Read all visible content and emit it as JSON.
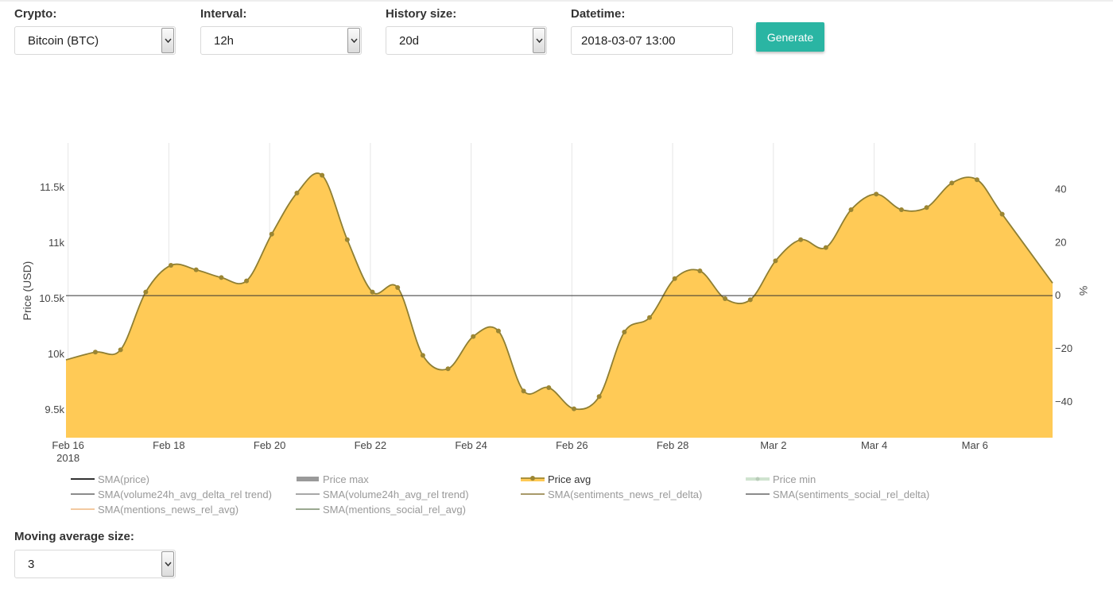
{
  "controls": {
    "crypto": {
      "label": "Crypto:",
      "value": "Bitcoin (BTC)"
    },
    "interval": {
      "label": "Interval:",
      "value": "12h"
    },
    "history": {
      "label": "History size:",
      "value": "20d"
    },
    "datetime": {
      "label": "Datetime:",
      "value": "2018-03-07 13:00"
    },
    "generate_label": "Generate",
    "moving_average": {
      "label": "Moving average size:",
      "value": "3"
    }
  },
  "colors": {
    "accent": "#2ab5a3",
    "area_fill": "#ffca56",
    "line": "#8f7f33",
    "marker": "#9b8633"
  },
  "chart_data": {
    "type": "area",
    "ylabel": "Price (USD)",
    "y2label": "%",
    "ylim": [
      9250,
      11900
    ],
    "y2lim": [
      -53.5,
      57.5
    ],
    "y_ticks": [
      9500,
      10000,
      10500,
      11000,
      11500
    ],
    "y_tick_labels": [
      "9.5k",
      "10k",
      "10.5k",
      "11k",
      "11.5k"
    ],
    "y2_ticks": [
      -40,
      -20,
      0,
      20,
      40
    ],
    "y2_tick_labels": [
      "−40",
      "−20",
      "0",
      "20",
      "40"
    ],
    "x_range": [
      "2018-02-15T23:00",
      "2018-03-07T13:00"
    ],
    "x_ticks": [
      "2018-02-16",
      "2018-02-18",
      "2018-02-20",
      "2018-02-22",
      "2018-02-24",
      "2018-02-26",
      "2018-02-28",
      "2018-03-02",
      "2018-03-04",
      "2018-03-06"
    ],
    "x_tick_labels": [
      "Feb 16",
      "Feb 18",
      "Feb 20",
      "Feb 22",
      "Feb 24",
      "Feb 26",
      "Feb 28",
      "Mar 2",
      "Mar 4",
      "Mar 6"
    ],
    "x_year_label": "2018",
    "grid": true,
    "reference_line": {
      "axis": "y2",
      "value": 0
    },
    "series": [
      {
        "name": "Price avg",
        "x": [
          "2018-02-16T13:00",
          "2018-02-17T01:00",
          "2018-02-17T13:00",
          "2018-02-18T01:00",
          "2018-02-18T13:00",
          "2018-02-19T01:00",
          "2018-02-19T13:00",
          "2018-02-20T01:00",
          "2018-02-20T13:00",
          "2018-02-21T01:00",
          "2018-02-21T13:00",
          "2018-02-22T01:00",
          "2018-02-22T13:00",
          "2018-02-23T01:00",
          "2018-02-23T13:00",
          "2018-02-24T01:00",
          "2018-02-24T13:00",
          "2018-02-25T01:00",
          "2018-02-25T13:00",
          "2018-02-26T01:00",
          "2018-02-26T13:00",
          "2018-02-27T01:00",
          "2018-02-27T13:00",
          "2018-02-28T01:00",
          "2018-02-28T13:00",
          "2018-03-01T01:00",
          "2018-03-01T13:00",
          "2018-03-02T01:00",
          "2018-03-02T13:00",
          "2018-03-03T01:00",
          "2018-03-03T13:00",
          "2018-03-04T01:00",
          "2018-03-04T13:00",
          "2018-03-05T01:00",
          "2018-03-05T13:00",
          "2018-03-06T01:00",
          "2018-03-06T13:00"
        ],
        "values": [
          10020,
          10040,
          10560,
          10800,
          10760,
          10690,
          10660,
          11080,
          11450,
          11610,
          11030,
          10560,
          10600,
          9990,
          9870,
          10160,
          10210,
          9670,
          9700,
          9510,
          9620,
          10200,
          10330,
          10680,
          10750,
          10500,
          10490,
          10840,
          11030,
          10960,
          11300,
          11440,
          11300,
          11320,
          11540,
          11570,
          11260
        ],
        "markers": true
      },
      {
        "name": "SMA(price)",
        "visible": false
      },
      {
        "name": "Price max",
        "visible": false
      },
      {
        "name": "Price min",
        "visible": false
      },
      {
        "name": "SMA(volume24h_avg_delta_rel trend)",
        "visible": false
      },
      {
        "name": "SMA(volume24h_avg_rel trend)",
        "visible": false
      },
      {
        "name": "SMA(sentiments_news_rel_delta)",
        "visible": false
      },
      {
        "name": "SMA(sentiments_social_rel_delta)",
        "visible": false
      },
      {
        "name": "SMA(mentions_news_rel_avg)",
        "visible": false
      },
      {
        "name": "SMA(mentions_social_rel_avg)",
        "visible": false
      }
    ],
    "legend": [
      {
        "label": "SMA(price)",
        "symbol": "line",
        "color": "#333333",
        "active": false
      },
      {
        "label": "Price max",
        "symbol": "bar",
        "color": "#9a9a9a",
        "active": false
      },
      {
        "label": "Price avg",
        "symbol": "line-marker",
        "color": "#ffca56",
        "active": true
      },
      {
        "label": "Price min",
        "symbol": "line-marker-light",
        "color": "#cfe3cf",
        "active": false
      },
      {
        "label": "SMA(volume24h_avg_delta_rel trend)",
        "symbol": "line",
        "color": "#8c8c8c",
        "active": false
      },
      {
        "label": "SMA(volume24h_avg_rel trend)",
        "symbol": "line",
        "color": "#a8a8a8",
        "active": false
      },
      {
        "label": "SMA(sentiments_news_rel_delta)",
        "symbol": "line",
        "color": "#a89a6a",
        "active": false
      },
      {
        "label": "SMA(sentiments_social_rel_delta)",
        "symbol": "line",
        "color": "#8c8c8c",
        "active": false
      },
      {
        "label": "SMA(mentions_news_rel_avg)",
        "symbol": "line",
        "color": "#f3c9a0",
        "active": false
      },
      {
        "label": "SMA(mentions_social_rel_avg)",
        "symbol": "line",
        "color": "#9aa890",
        "active": false
      }
    ]
  }
}
